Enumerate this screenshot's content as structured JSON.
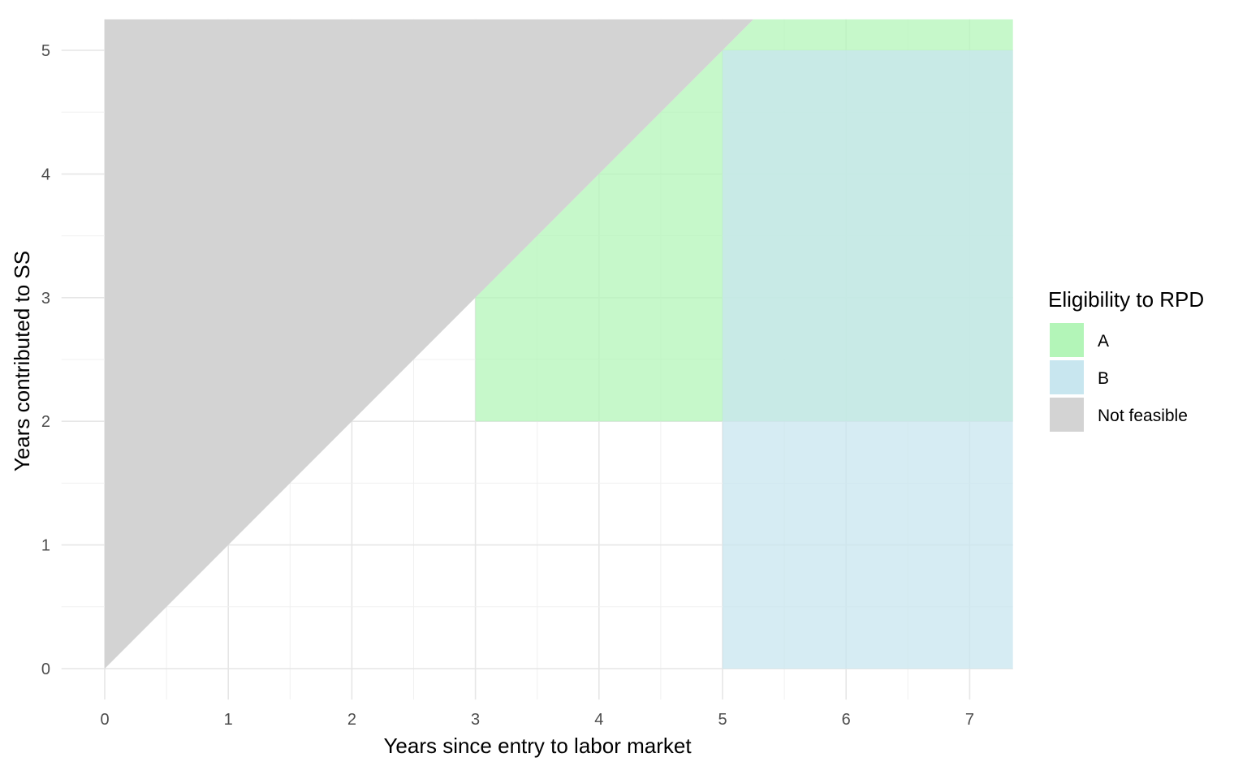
{
  "chart_data": {
    "type": "area",
    "title": "",
    "xlabel": "Years since entry to labor market",
    "ylabel": "Years contributed to SS",
    "xlim": [
      0,
      7.35
    ],
    "ylim": [
      0,
      5.25
    ],
    "x_ticks": [
      0,
      1,
      2,
      3,
      4,
      5,
      6,
      7
    ],
    "y_ticks": [
      0,
      1,
      2,
      3,
      4,
      5
    ],
    "grid": true,
    "legend": {
      "title": "Eligibility to RPD",
      "position": "right",
      "entries": [
        {
          "label": "A",
          "color": "#b3f5b8"
        },
        {
          "label": "B",
          "color": "#c8e6ef"
        },
        {
          "label": "Not feasible",
          "color": "#d3d3d3"
        }
      ]
    },
    "regions": [
      {
        "name": "Not feasible",
        "color": "#d3d3d3",
        "opacity": 1.0,
        "points": [
          [
            0,
            0
          ],
          [
            0,
            5.25
          ],
          [
            5.25,
            5.25
          ]
        ]
      },
      {
        "name": "A",
        "color": "#b3f5b8",
        "opacity": 0.75,
        "points": [
          [
            3,
            2
          ],
          [
            7.35,
            2
          ],
          [
            7.35,
            5.25
          ],
          [
            5.25,
            5.25
          ],
          [
            3,
            3
          ]
        ]
      },
      {
        "name": "B",
        "color": "#c8e6ef",
        "opacity": 0.75,
        "points": [
          [
            5,
            0
          ],
          [
            7.35,
            0
          ],
          [
            7.35,
            5
          ],
          [
            5,
            5
          ]
        ]
      }
    ]
  }
}
